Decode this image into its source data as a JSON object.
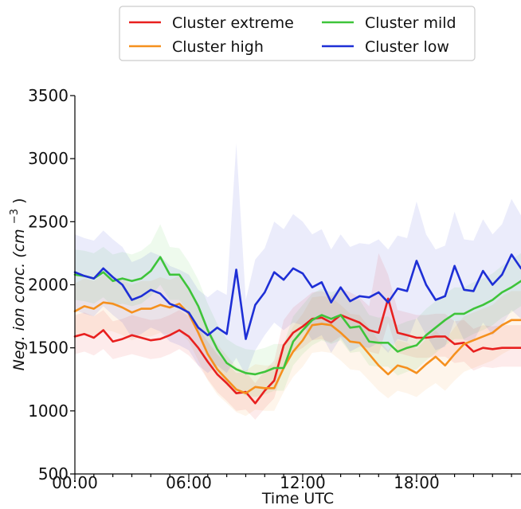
{
  "chart_data": {
    "type": "line",
    "xlabel": "Time UTC",
    "ylabel_prefix": "Neg. ion conc.",
    "ylabel_unit": "(cm",
    "ylabel_exp": "−3",
    "ylabel_close": ")",
    "xlim": [
      0,
      23.5
    ],
    "ylim": [
      500,
      3500
    ],
    "xticks": [
      0,
      6,
      12,
      18
    ],
    "xtick_labels": [
      "00:00",
      "06:00",
      "12:00",
      "18:00"
    ],
    "yticks": [
      500,
      1000,
      1500,
      2000,
      2500,
      3000,
      3500
    ],
    "ytick_labels": [
      "500",
      "1000",
      "1500",
      "2000",
      "2500",
      "3000",
      "3500"
    ],
    "legend_position": "top-center",
    "series": [
      {
        "name": "Cluster extreme",
        "color": "#e8201f",
        "x": [
          0,
          0.5,
          1,
          1.5,
          2,
          2.5,
          3,
          3.5,
          4,
          4.5,
          5,
          5.5,
          6,
          6.5,
          7,
          7.5,
          8,
          8.5,
          9,
          9.5,
          10,
          10.5,
          11,
          11.5,
          12,
          12.5,
          13,
          13.5,
          14,
          14.5,
          15,
          15.5,
          16,
          16.5,
          17,
          17.5,
          18,
          18.5,
          19,
          19.5,
          20,
          20.5,
          21,
          21.5,
          22,
          22.5,
          23,
          23.5
        ],
        "values": [
          1590,
          1610,
          1580,
          1640,
          1550,
          1570,
          1600,
          1580,
          1560,
          1570,
          1600,
          1640,
          1590,
          1500,
          1390,
          1290,
          1220,
          1140,
          1150,
          1060,
          1160,
          1240,
          1520,
          1620,
          1670,
          1730,
          1740,
          1700,
          1760,
          1730,
          1700,
          1640,
          1620,
          1890,
          1620,
          1600,
          1580,
          1580,
          1590,
          1590,
          1530,
          1540,
          1470,
          1500,
          1490,
          1500,
          1500,
          1500
        ],
        "lower": [
          1450,
          1470,
          1440,
          1490,
          1410,
          1430,
          1450,
          1430,
          1410,
          1420,
          1450,
          1490,
          1440,
          1360,
          1250,
          1150,
          1080,
          1000,
          1010,
          930,
          1020,
          1100,
          1360,
          1460,
          1500,
          1560,
          1570,
          1540,
          1590,
          1560,
          1530,
          1470,
          1450,
          1700,
          1460,
          1440,
          1420,
          1420,
          1430,
          1430,
          1380,
          1390,
          1320,
          1350,
          1340,
          1350,
          1350,
          1350
        ],
        "upper": [
          1760,
          1780,
          1750,
          1800,
          1710,
          1730,
          1760,
          1740,
          1720,
          1730,
          1760,
          1800,
          1750,
          1660,
          1550,
          1450,
          1380,
          1300,
          1310,
          1220,
          1320,
          1400,
          1720,
          1820,
          1880,
          1940,
          1950,
          1910,
          1970,
          1940,
          1900,
          1830,
          2250,
          2080,
          1800,
          1780,
          1760,
          1760,
          1770,
          1770,
          1710,
          1720,
          1650,
          1680,
          1670,
          1680,
          1680,
          1680
        ]
      },
      {
        "name": "Cluster high",
        "color": "#f5901e",
        "x": [
          0,
          0.5,
          1,
          1.5,
          2,
          2.5,
          3,
          3.5,
          4,
          4.5,
          5,
          5.5,
          6,
          6.5,
          7,
          7.5,
          8,
          8.5,
          9,
          9.5,
          10,
          10.5,
          11,
          11.5,
          12,
          12.5,
          13,
          13.5,
          14,
          14.5,
          15,
          15.5,
          16,
          16.5,
          17,
          17.5,
          18,
          18.5,
          19,
          19.5,
          20,
          20.5,
          21,
          21.5,
          22,
          22.5,
          23,
          23.5
        ],
        "values": [
          1790,
          1830,
          1810,
          1860,
          1850,
          1820,
          1780,
          1810,
          1810,
          1840,
          1820,
          1850,
          1770,
          1620,
          1450,
          1330,
          1250,
          1170,
          1140,
          1190,
          1180,
          1180,
          1340,
          1470,
          1560,
          1680,
          1690,
          1680,
          1620,
          1550,
          1540,
          1450,
          1360,
          1290,
          1360,
          1340,
          1300,
          1370,
          1430,
          1360,
          1450,
          1530,
          1560,
          1590,
          1620,
          1680,
          1720,
          1720
        ],
        "lower": [
          1570,
          1610,
          1590,
          1640,
          1630,
          1600,
          1560,
          1590,
          1590,
          1620,
          1600,
          1630,
          1550,
          1400,
          1240,
          1130,
          1060,
          990,
          960,
          1010,
          1000,
          1000,
          1150,
          1270,
          1350,
          1460,
          1470,
          1460,
          1400,
          1330,
          1320,
          1240,
          1160,
          1100,
          1160,
          1140,
          1110,
          1170,
          1220,
          1160,
          1240,
          1310,
          1340,
          1370,
          1400,
          1450,
          1490,
          1490
        ],
        "upper": [
          2010,
          2050,
          2030,
          2080,
          2070,
          2040,
          2000,
          2030,
          2030,
          2060,
          2040,
          2070,
          1990,
          1840,
          1660,
          1530,
          1440,
          1350,
          1320,
          1370,
          1360,
          1360,
          1530,
          1670,
          1770,
          1900,
          1910,
          1900,
          1840,
          1770,
          1760,
          1660,
          1560,
          1480,
          1560,
          1540,
          1490,
          1570,
          1640,
          1560,
          1660,
          1750,
          1780,
          1810,
          1840,
          1910,
          1950,
          1950
        ]
      },
      {
        "name": "Cluster mild",
        "color": "#3ec43a",
        "x": [
          0,
          0.5,
          1,
          1.5,
          2,
          2.5,
          3,
          3.5,
          4,
          4.5,
          5,
          5.5,
          6,
          6.5,
          7,
          7.5,
          8,
          8.5,
          9,
          9.5,
          10,
          10.5,
          11,
          11.5,
          12,
          12.5,
          13,
          13.5,
          14,
          14.5,
          15,
          15.5,
          16,
          16.5,
          17,
          17.5,
          18,
          18.5,
          19,
          19.5,
          20,
          20.5,
          21,
          21.5,
          22,
          22.5,
          23,
          23.5
        ],
        "values": [
          2080,
          2070,
          2050,
          2100,
          2030,
          2050,
          2030,
          2050,
          2110,
          2220,
          2080,
          2080,
          1970,
          1830,
          1640,
          1490,
          1380,
          1330,
          1300,
          1290,
          1310,
          1340,
          1340,
          1550,
          1640,
          1720,
          1760,
          1730,
          1760,
          1660,
          1670,
          1550,
          1540,
          1540,
          1470,
          1500,
          1520,
          1600,
          1660,
          1720,
          1770,
          1770,
          1810,
          1840,
          1880,
          1940,
          1980,
          2030
        ],
        "lower": [
          1880,
          1870,
          1850,
          1900,
          1830,
          1850,
          1830,
          1850,
          1910,
          2000,
          1880,
          1880,
          1770,
          1630,
          1440,
          1300,
          1200,
          1150,
          1120,
          1110,
          1130,
          1160,
          1160,
          1360,
          1450,
          1520,
          1560,
          1530,
          1560,
          1460,
          1470,
          1360,
          1350,
          1350,
          1280,
          1310,
          1330,
          1400,
          1460,
          1520,
          1570,
          1570,
          1610,
          1640,
          1680,
          1740,
          1780,
          1830
        ],
        "upper": [
          2280,
          2270,
          2250,
          2300,
          2240,
          2260,
          2240,
          2270,
          2330,
          2480,
          2300,
          2290,
          2180,
          2040,
          1850,
          1690,
          1570,
          1520,
          1490,
          1480,
          1500,
          1530,
          1530,
          1750,
          1840,
          1930,
          1970,
          1940,
          1970,
          1870,
          1880,
          1760,
          1740,
          1750,
          1680,
          1710,
          1730,
          1810,
          1870,
          1930,
          1980,
          1980,
          2020,
          2050,
          2090,
          2150,
          2200,
          2250
        ]
      },
      {
        "name": "Cluster low",
        "color": "#1e2fd6",
        "x": [
          0,
          0.5,
          1,
          1.5,
          2,
          2.5,
          3,
          3.5,
          4,
          4.5,
          5,
          5.5,
          6,
          6.5,
          7,
          7.5,
          8,
          8.5,
          9,
          9.5,
          10,
          10.5,
          11,
          11.5,
          12,
          12.5,
          13,
          13.5,
          14,
          14.5,
          15,
          15.5,
          16,
          16.5,
          17,
          17.5,
          18,
          18.5,
          19,
          19.5,
          20,
          20.5,
          21,
          21.5,
          22,
          22.5,
          23,
          23.5
        ],
        "values": [
          2100,
          2070,
          2050,
          2130,
          2060,
          2000,
          1880,
          1910,
          1960,
          1930,
          1850,
          1820,
          1780,
          1660,
          1600,
          1660,
          1610,
          2120,
          1570,
          1840,
          1940,
          2100,
          2040,
          2130,
          2090,
          1980,
          2020,
          1860,
          1980,
          1870,
          1910,
          1900,
          1940,
          1860,
          1970,
          1950,
          2190,
          2000,
          1880,
          1910,
          2150,
          1960,
          1950,
          2110,
          2000,
          2080,
          2240,
          2130
        ],
        "lower": [
          1800,
          1770,
          1750,
          1830,
          1760,
          1700,
          1580,
          1610,
          1660,
          1630,
          1550,
          1520,
          1480,
          1360,
          1300,
          1360,
          1300,
          1420,
          1280,
          1480,
          1600,
          1700,
          1640,
          1700,
          1680,
          1560,
          1600,
          1460,
          1580,
          1470,
          1510,
          1500,
          1540,
          1460,
          1570,
          1550,
          1740,
          1600,
          1480,
          1510,
          1720,
          1560,
          1550,
          1700,
          1600,
          1680,
          1800,
          1730
        ],
        "upper": [
          2400,
          2370,
          2350,
          2430,
          2360,
          2300,
          2180,
          2210,
          2260,
          2230,
          2150,
          2120,
          2080,
          1960,
          1900,
          1960,
          1920,
          3120,
          1880,
          2200,
          2290,
          2500,
          2440,
          2560,
          2500,
          2400,
          2440,
          2280,
          2400,
          2300,
          2330,
          2320,
          2360,
          2280,
          2390,
          2370,
          2660,
          2400,
          2280,
          2310,
          2580,
          2360,
          2350,
          2520,
          2400,
          2480,
          2680,
          2550
        ]
      }
    ]
  }
}
